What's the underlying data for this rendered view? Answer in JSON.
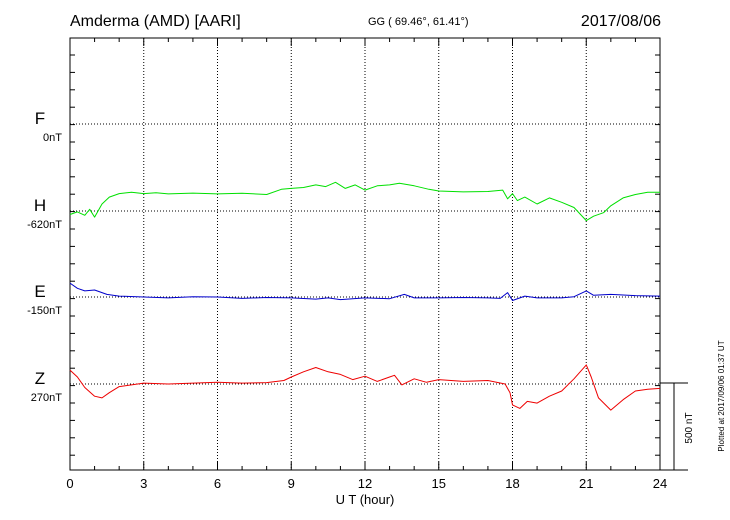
{
  "header": {
    "station": "Amderma (AMD)  [AARI]",
    "coords": "GG ( 69.46°,  61.41°)",
    "date": "2017/08/06"
  },
  "plotted_note": "Plotted at 2017/09/06 01:37 UT",
  "scale_bar_label": "500 nT",
  "colors": {
    "F": "#ffa500",
    "H": "#00e000",
    "E": "#0000cc",
    "Z": "#ee0000",
    "grid": "#000000"
  },
  "chart_data": {
    "type": "line",
    "title": "Amderma (AMD)  [AARI]",
    "xlabel": "U T (hour)",
    "xlim": [
      0,
      24
    ],
    "xticks": [
      "0",
      "3",
      "6",
      "9",
      "12",
      "15",
      "18",
      "21",
      "24"
    ],
    "scale_bar_nT": 500,
    "series": [
      {
        "name": "F",
        "baseline": "0nT",
        "color": "#ffa500",
        "x": [],
        "y": []
      },
      {
        "name": "H",
        "baseline": "-620nT",
        "color": "#00e000",
        "x": [
          0,
          0.3,
          0.6,
          0.8,
          1.0,
          1.3,
          1.6,
          2.0,
          2.5,
          3.0,
          3.5,
          4.0,
          5.0,
          6.0,
          7.0,
          8.0,
          8.6,
          9.0,
          9.5,
          10.0,
          10.4,
          10.8,
          11.2,
          11.6,
          12.0,
          12.5,
          13.0,
          13.4,
          14.0,
          14.6,
          15.0,
          16.0,
          17.0,
          17.6,
          17.8,
          18.0,
          18.2,
          18.5,
          19.0,
          19.5,
          20.0,
          20.5,
          21.0,
          21.3,
          21.7,
          22.0,
          22.5,
          23.0,
          23.5,
          24.0
        ],
        "y": [
          -20,
          -5,
          -25,
          10,
          -35,
          40,
          80,
          100,
          108,
          100,
          105,
          98,
          103,
          98,
          102,
          95,
          125,
          130,
          135,
          150,
          140,
          165,
          130,
          150,
          120,
          145,
          150,
          160,
          145,
          125,
          115,
          110,
          112,
          120,
          70,
          100,
          60,
          80,
          40,
          75,
          50,
          20,
          -55,
          -30,
          -10,
          30,
          75,
          95,
          108,
          108
        ]
      },
      {
        "name": "E",
        "baseline": "-150nT",
        "color": "#0000cc",
        "x": [
          0,
          0.3,
          0.6,
          1.0,
          1.5,
          2.0,
          3.0,
          4.0,
          5.0,
          6.0,
          7.0,
          8.0,
          9.0,
          10.0,
          10.5,
          11.0,
          12.0,
          13.0,
          13.6,
          14.0,
          15.0,
          16.0,
          17.0,
          17.5,
          17.8,
          18.0,
          18.5,
          19.0,
          20.0,
          20.5,
          21.0,
          21.3,
          22.0,
          23.0,
          24.0
        ],
        "y": [
          80,
          50,
          35,
          40,
          15,
          5,
          0,
          -5,
          2,
          0,
          -8,
          -3,
          -5,
          -12,
          -5,
          -15,
          -5,
          -10,
          15,
          -5,
          -5,
          -3,
          -5,
          -8,
          25,
          -20,
          5,
          -5,
          -5,
          2,
          35,
          10,
          15,
          8,
          5
        ]
      },
      {
        "name": "Z",
        "baseline": "270nT",
        "color": "#ee0000",
        "x": [
          0,
          0.3,
          0.6,
          1.0,
          1.3,
          1.6,
          2.0,
          2.5,
          3.0,
          4.0,
          5.0,
          6.0,
          7.0,
          8.0,
          8.7,
          9.0,
          9.5,
          10.0,
          10.5,
          11.0,
          11.5,
          12.0,
          12.5,
          13.0,
          13.2,
          13.5,
          14.0,
          14.5,
          15.0,
          16.0,
          17.0,
          17.7,
          17.9,
          18.0,
          18.3,
          18.6,
          19.0,
          19.5,
          20.0,
          20.5,
          21.0,
          21.2,
          21.5,
          22.0,
          22.5,
          23.0,
          23.5,
          24.0
        ],
        "y": [
          80,
          40,
          -20,
          -70,
          -80,
          -50,
          -15,
          -5,
          5,
          0,
          5,
          10,
          5,
          8,
          20,
          40,
          70,
          95,
          70,
          55,
          25,
          45,
          15,
          40,
          50,
          -5,
          30,
          10,
          25,
          15,
          20,
          0,
          -50,
          -120,
          -140,
          -100,
          -110,
          -70,
          -40,
          30,
          110,
          40,
          -80,
          -150,
          -90,
          -40,
          -30,
          -25
        ]
      }
    ]
  }
}
